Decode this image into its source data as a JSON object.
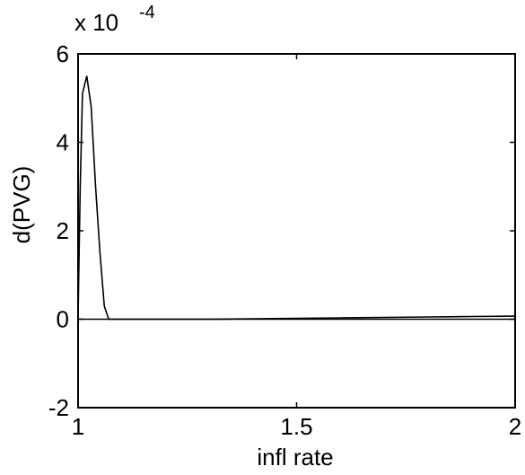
{
  "chart_data": {
    "type": "line",
    "xlabel": "infl rate",
    "ylabel": "d(PVG)",
    "y_exponent_label": "x 10",
    "y_exponent_power": "-4",
    "xlim": [
      1,
      2
    ],
    "ylim": [
      -2,
      6
    ],
    "xticks": [
      1,
      1.5,
      2
    ],
    "xtick_labels": [
      "1",
      "1.5",
      "2"
    ],
    "yticks": [
      -2,
      0,
      2,
      4,
      6
    ],
    "ytick_labels": [
      "-2",
      "0",
      "2",
      "4",
      "6"
    ],
    "grid": false,
    "series": [
      {
        "x": [
          1.0,
          1.005,
          1.01,
          1.02,
          1.03,
          1.04,
          1.05,
          1.06,
          1.07,
          1.08,
          1.1,
          1.2,
          1.3,
          1.4,
          1.5,
          1.6,
          1.7,
          1.8,
          1.9,
          2.0
        ],
        "y": [
          0.05,
          3.0,
          5.1,
          5.5,
          4.8,
          3.0,
          1.5,
          0.3,
          0.0,
          0.0,
          0.0,
          0.0,
          0.0,
          0.01,
          0.02,
          0.03,
          0.04,
          0.05,
          0.06,
          0.07
        ]
      }
    ],
    "reference_lines": [
      {
        "y": 0
      }
    ]
  }
}
